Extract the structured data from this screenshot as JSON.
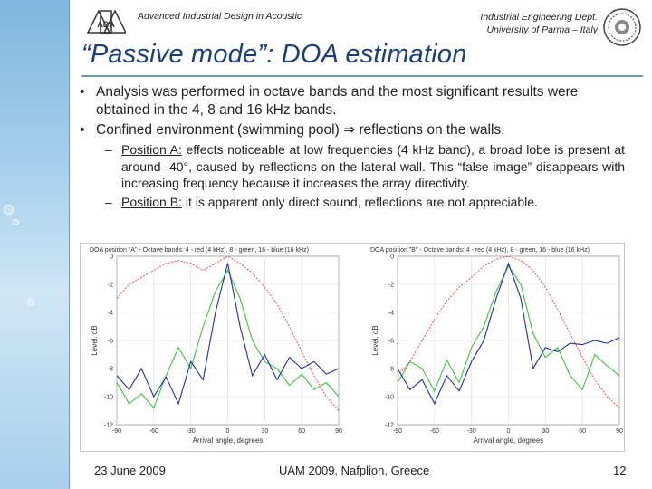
{
  "header": {
    "course": "Advanced Industrial Design in Acoustic",
    "dept_line1": "Industrial Engineering Dept.",
    "dept_line2": "University of Parma – Italy",
    "logo_text": "ADA"
  },
  "title": "“Passive mode”: DOA estimation",
  "bullets": [
    {
      "text": "Analysis was performed in octave bands and the most significant results were obtained in the 4, 8 and 16 kHz bands."
    },
    {
      "text": "Confined environment (swimming pool) ⇒ reflections on the walls."
    }
  ],
  "sub_bullets": [
    {
      "label": "Position A:",
      "text": " effects noticeable at low frequencies (4 kHz band), a broad lobe is present at around -40°, caused by reflections on the lateral wall. This “false image” disappears with increasing frequency because it increases the array directivity."
    },
    {
      "label": "Position B:",
      "text": " it is apparent only direct sound, reflections are not appreciable."
    }
  ],
  "footer": {
    "date": "23 June 2009",
    "event": "UAM 2009,  Nafplion, Greece",
    "page": "12"
  },
  "colors": {
    "title": "#1a3f7a",
    "series_4k": "#e06060",
    "series_8k": "#40c040",
    "series_16k": "#2030a0"
  },
  "chart_data": [
    {
      "type": "line",
      "title": "DOA position \"A\" - Octave bands: 4 - red (4 kHz), 8 - green, 16 - blue (16 kHz)",
      "xlabel": "Arrival angle, degrees",
      "ylabel": "Level, dB",
      "xlim": [
        -90,
        90
      ],
      "ylim": [
        -12,
        0
      ],
      "x_ticks": [
        "-90",
        "-60",
        "-30",
        "0",
        "30",
        "60",
        "90"
      ],
      "y_ticks": [
        "0",
        "-2",
        "-4",
        "-6",
        "-8",
        "-10",
        "-12"
      ],
      "x": [
        -90,
        -80,
        -70,
        -60,
        -50,
        -40,
        -30,
        -20,
        -10,
        0,
        10,
        20,
        30,
        40,
        50,
        60,
        70,
        80,
        90
      ],
      "series": [
        {
          "name": "4 kHz",
          "values": [
            -3.0,
            -2.0,
            -1.5,
            -1.0,
            -0.5,
            -0.3,
            -0.5,
            -1.0,
            -0.5,
            0.0,
            -0.5,
            -1.2,
            -2.2,
            -3.4,
            -5.0,
            -6.8,
            -8.5,
            -10.0,
            -11.0
          ]
        },
        {
          "name": "8 kHz",
          "values": [
            -9.0,
            -10.5,
            -9.8,
            -10.8,
            -8.5,
            -6.5,
            -8.0,
            -5.0,
            -2.5,
            -1.0,
            -3.0,
            -6.0,
            -7.5,
            -8.0,
            -9.2,
            -8.4,
            -9.5,
            -9.0,
            -10.0
          ]
        },
        {
          "name": "16 kHz",
          "values": [
            -8.5,
            -9.5,
            -8.0,
            -10.0,
            -8.6,
            -10.5,
            -7.5,
            -8.8,
            -4.0,
            -0.5,
            -5.0,
            -8.5,
            -7.0,
            -8.8,
            -7.2,
            -8.0,
            -7.5,
            -8.4,
            -8.0
          ]
        }
      ]
    },
    {
      "type": "line",
      "title": "DOA position \"B\" - Octave bands: 4 - red (4 kHz), 8 - green, 16 - blue (16 kHz)",
      "xlabel": "Arrival angle, degrees",
      "ylabel": "Level, dB",
      "xlim": [
        -90,
        90
      ],
      "ylim": [
        -12,
        0
      ],
      "x_ticks": [
        "-90",
        "-60",
        "-30",
        "0",
        "30",
        "60",
        "90"
      ],
      "y_ticks": [
        "0",
        "-2",
        "-4",
        "-6",
        "-8",
        "-10",
        "-12"
      ],
      "x": [
        -90,
        -80,
        -70,
        -60,
        -50,
        -40,
        -30,
        -20,
        -10,
        0,
        10,
        20,
        30,
        40,
        50,
        60,
        70,
        80,
        90
      ],
      "series": [
        {
          "name": "4 kHz",
          "values": [
            -8.5,
            -7.5,
            -6.0,
            -4.5,
            -3.2,
            -2.2,
            -1.5,
            -0.7,
            -0.2,
            0.0,
            -0.3,
            -1.0,
            -2.2,
            -3.8,
            -5.5,
            -7.2,
            -8.8,
            -10.0,
            -10.8
          ]
        },
        {
          "name": "8 kHz",
          "values": [
            -9.0,
            -7.5,
            -8.0,
            -9.6,
            -7.4,
            -9.0,
            -6.5,
            -5.0,
            -2.5,
            -0.7,
            -2.0,
            -5.5,
            -7.2,
            -6.5,
            -8.5,
            -9.5,
            -7.0,
            -7.8,
            -8.5
          ]
        },
        {
          "name": "16 kHz",
          "values": [
            -8.0,
            -9.5,
            -8.8,
            -10.5,
            -8.5,
            -9.6,
            -7.5,
            -6.0,
            -3.0,
            -0.5,
            -3.0,
            -8.0,
            -6.5,
            -6.8,
            -6.2,
            -6.3,
            -6.0,
            -6.2,
            -5.8
          ]
        }
      ]
    }
  ]
}
